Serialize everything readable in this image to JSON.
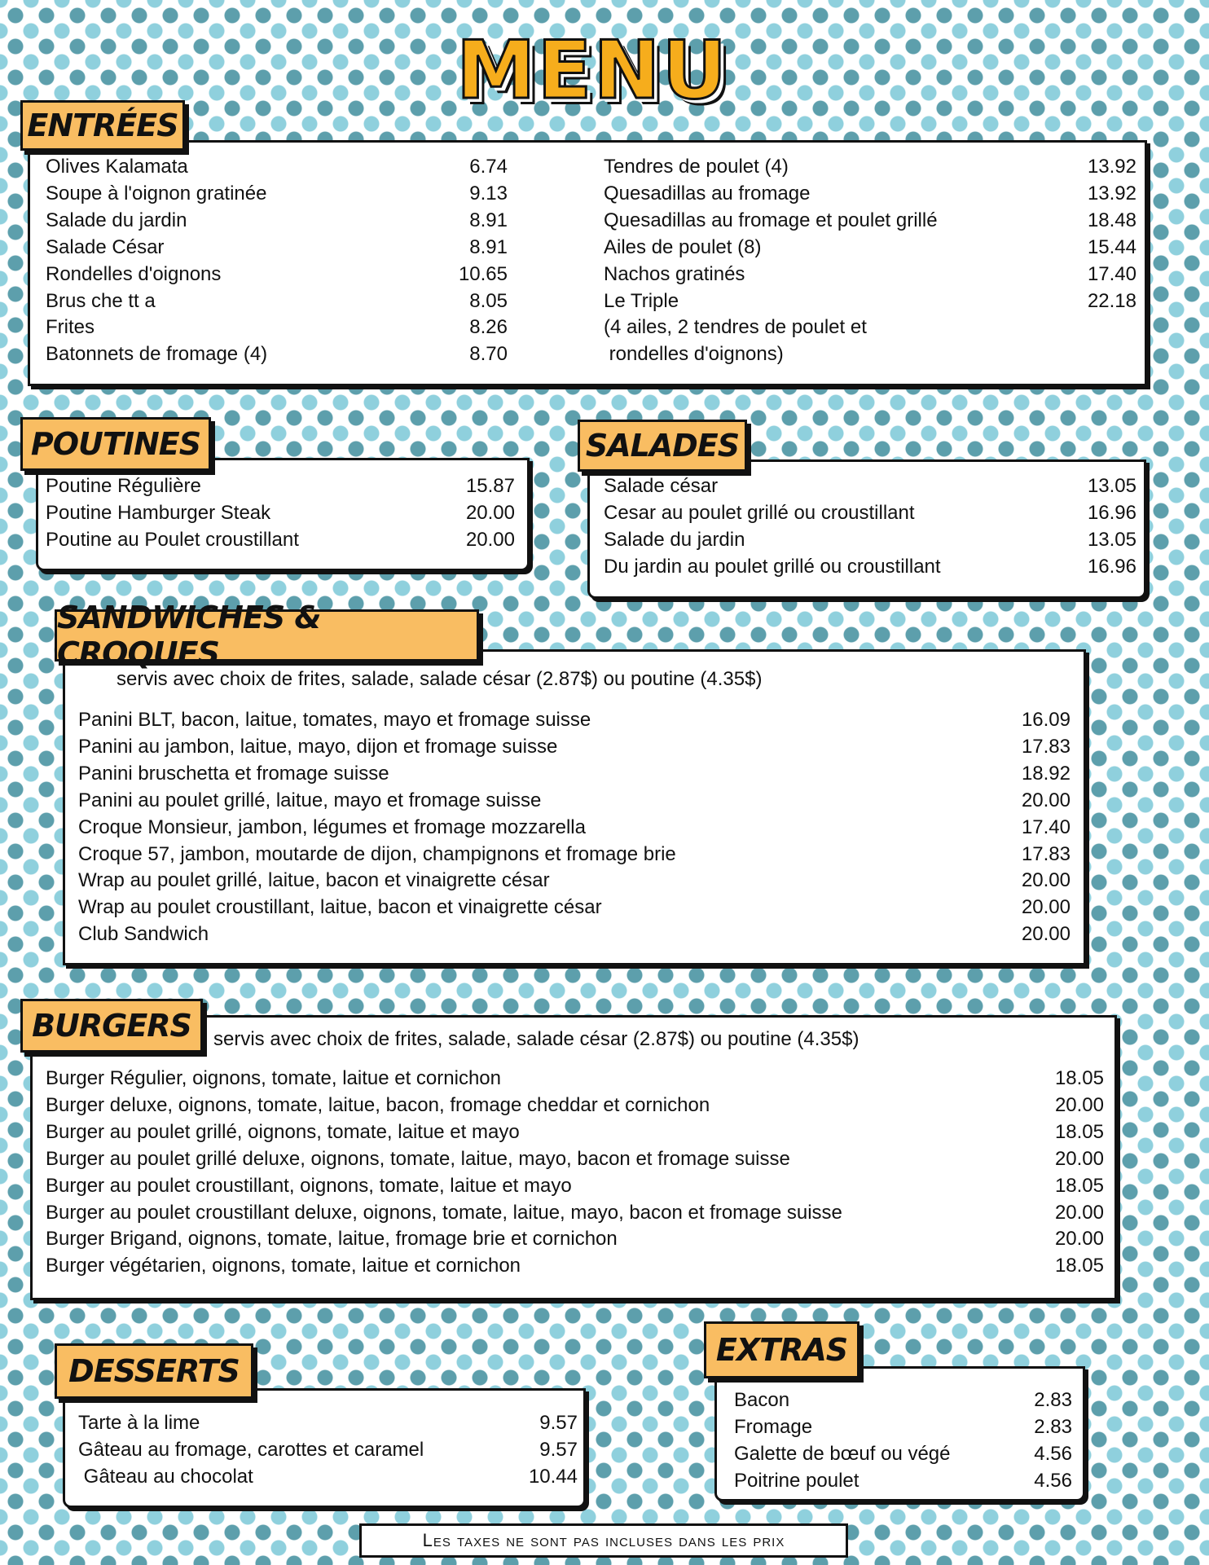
{
  "title": "MENU",
  "colors": {
    "label_bg": "#f9bd62",
    "title": "#f6ad1c",
    "dot_dark": "#5d9fac",
    "dot_light": "#8fd0dd"
  },
  "entrees": {
    "label": "ENTRÉES",
    "left": [
      {
        "name": "Olives Kalamata",
        "price": "6.74"
      },
      {
        "name": "Soupe à l'oignon gratinée",
        "price": "9.13"
      },
      {
        "name": "Salade du jardin",
        "price": "8.91"
      },
      {
        "name": "Salade César",
        "price": "8.91"
      },
      {
        "name": "Rondelles d'oignons",
        "price": "10.65"
      },
      {
        "name": "Brus che tt a",
        "price": "8.05"
      },
      {
        "name": "Frites",
        "price": "8.26"
      },
      {
        "name": "Batonnets de fromage (4)",
        "price": "8.70"
      }
    ],
    "right": [
      {
        "name": "Tendres de poulet (4)",
        "price": "13.92"
      },
      {
        "name": "Quesadillas au fromage",
        "price": "13.92"
      },
      {
        "name": "Quesadillas au fromage et poulet grillé",
        "price": "18.48"
      },
      {
        "name": "Ailes de poulet (8)",
        "price": "15.44"
      },
      {
        "name": "Nachos gratinés",
        "price": "17.40"
      },
      {
        "name": "Le Triple",
        "price": "22.18"
      },
      {
        "name": "(4 ailes, 2 tendres de poulet et",
        "price": ""
      },
      {
        "name": " rondelles d'oignons)",
        "price": ""
      }
    ]
  },
  "poutines": {
    "label": "POUTINES",
    "items": [
      {
        "name": "Poutine Régulière",
        "price": "15.87"
      },
      {
        "name": "Poutine Hamburger Steak",
        "price": "20.00"
      },
      {
        "name": "Poutine au Poulet croustillant",
        "price": "20.00"
      }
    ]
  },
  "salades": {
    "label": "SALADES",
    "items": [
      {
        "name": "Salade césar",
        "price": "13.05"
      },
      {
        "name": "Cesar au poulet grillé ou croustillant",
        "price": "16.96"
      },
      {
        "name": "Salade du jardin",
        "price": "13.05"
      },
      {
        "name": "Du jardin au poulet grillé ou croustillant",
        "price": "16.96"
      }
    ]
  },
  "sandwiches": {
    "label": "SANDWICHES & CROQUES",
    "subtitle": "servis avec choix de frites, salade, salade césar (2.87$) ou poutine (4.35$)",
    "items": [
      {
        "name": "Panini BLT, bacon, laitue, tomates, mayo et fromage suisse",
        "price": "16.09"
      },
      {
        "name": "Panini au jambon, laitue, mayo, dijon et fromage suisse",
        "price": "17.83"
      },
      {
        "name": "Panini bruschetta et fromage suisse",
        "price": "18.92"
      },
      {
        "name": "Panini au poulet grillé, laitue, mayo et fromage suisse",
        "price": "20.00"
      },
      {
        "name": "Croque Monsieur, jambon, légumes et fromage mozzarella",
        "price": "17.40"
      },
      {
        "name": "Croque 57, jambon, moutarde de dijon, champignons et fromage brie",
        "price": "17.83"
      },
      {
        "name": "Wrap au poulet grillé, laitue, bacon et vinaigrette césar",
        "price": "20.00"
      },
      {
        "name": "Wrap au poulet croustillant, laitue, bacon et vinaigrette césar",
        "price": "20.00"
      },
      {
        "name": "Club Sandwich",
        "price": "20.00"
      }
    ]
  },
  "burgers": {
    "label": "BURGERS",
    "subtitle": "servis avec choix de frites, salade, salade césar (2.87$) ou poutine (4.35$)",
    "items": [
      {
        "name": "Burger Régulier, oignons, tomate, laitue et cornichon",
        "price": "18.05"
      },
      {
        "name": "Burger deluxe, oignons, tomate, laitue, bacon, fromage cheddar et cornichon",
        "price": "20.00"
      },
      {
        "name": "Burger au poulet grillé, oignons, tomate, laitue et mayo",
        "price": "18.05"
      },
      {
        "name": "Burger au poulet grillé deluxe, oignons, tomate, laitue, mayo, bacon et fromage suisse",
        "price": "20.00"
      },
      {
        "name": "Burger au poulet croustillant, oignons, tomate, laitue et mayo",
        "price": "18.05"
      },
      {
        "name": "Burger au poulet croustillant deluxe, oignons, tomate, laitue, mayo, bacon et fromage suisse",
        "price": "20.00"
      },
      {
        "name": "Burger Brigand, oignons, tomate, laitue, fromage brie et cornichon",
        "price": "20.00"
      },
      {
        "name": "Burger végétarien, oignons, tomate, laitue et cornichon",
        "price": "18.05"
      }
    ]
  },
  "desserts": {
    "label": "DESSERTS",
    "items": [
      {
        "name": "Tarte à la lime",
        "price": "9.57"
      },
      {
        "name": "Gâteau au fromage, carottes et caramel",
        "price": "9.57"
      },
      {
        "name": " Gâteau au chocolat",
        "price": "10.44"
      }
    ]
  },
  "extras": {
    "label": "EXTRAS",
    "items": [
      {
        "name": "Bacon",
        "price": "2.83"
      },
      {
        "name": "Fromage",
        "price": "2.83"
      },
      {
        "name": "Galette de bœuf ou végé",
        "price": "4.56"
      },
      {
        "name": "Poitrine poulet",
        "price": "4.56"
      }
    ]
  },
  "footer": "Les taxes ne sont pas incluses dans les prix"
}
